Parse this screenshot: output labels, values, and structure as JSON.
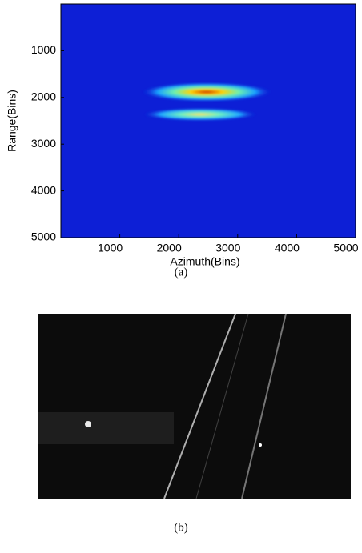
{
  "chart_data": {
    "type": "heatmap",
    "xlabel": "Azimuth(Bins)",
    "ylabel": "Range(Bins)",
    "xlim": [
      0,
      5000
    ],
    "ylim": [
      0,
      5000
    ],
    "y_reversed": true,
    "xticks": [
      1000,
      2000,
      3000,
      4000,
      5000
    ],
    "yticks": [
      1000,
      2000,
      3000,
      4000,
      5000
    ],
    "caption": "(a)"
  },
  "image": {
    "caption": "(b)"
  }
}
